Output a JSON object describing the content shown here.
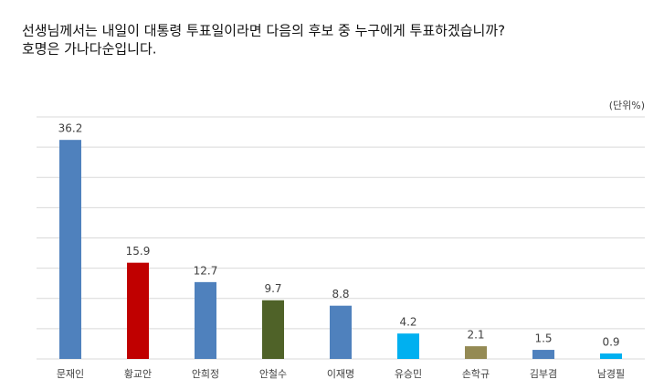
{
  "chart_data": {
    "type": "bar",
    "title": [
      "선생님께서는 내일이 대통령 투표일이라면 다음의 후보 중 누구에게 투표하겠습니까?",
      "호명은 가나다순입니다."
    ],
    "unit_note": "(단위%)",
    "categories": [
      "문재인",
      "황교안",
      "안희정",
      "안철수",
      "이재명",
      "유승민",
      "손학규",
      "김부겸",
      "남경필"
    ],
    "values": [
      36.2,
      15.9,
      12.7,
      9.7,
      8.8,
      4.2,
      2.1,
      1.5,
      0.9
    ],
    "colors": [
      "#4f81bd",
      "#c00000",
      "#4f81bd",
      "#4f6228",
      "#4f81bd",
      "#00b0f0",
      "#948a54",
      "#4f81bd",
      "#00b0f0"
    ],
    "ylim": [
      0,
      40
    ],
    "yticks": [
      0,
      5,
      10,
      15,
      20,
      25,
      30,
      35,
      40
    ],
    "grid": true
  }
}
